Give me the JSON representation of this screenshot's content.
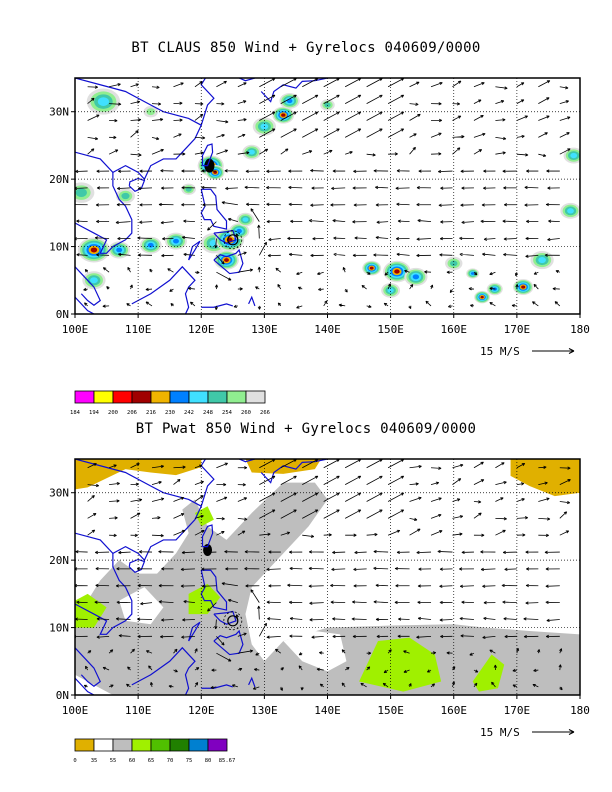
{
  "panels": [
    {
      "title": "BT CLAUS 850 Wind + Gyrelocs 040609/0000",
      "kind": "claus",
      "lat_labels": [
        "30N",
        "20N",
        "10N",
        "0N"
      ],
      "lon_labels": [
        "100E",
        "110E",
        "120E",
        "130E",
        "140E",
        "150E",
        "160E",
        "170E",
        "180"
      ],
      "ref_vector": "15 M/S",
      "colorbar": {
        "labels": [
          "184",
          "194",
          "200",
          "206",
          "216",
          "230",
          "242",
          "248",
          "254",
          "260",
          "266"
        ],
        "colors": [
          "#ff00ff",
          "#ffff00",
          "#ff0000",
          "#a00000",
          "#f0b400",
          "#0080ff",
          "#40e0ff",
          "#40c8a8",
          "#90ee90",
          "#e0e0e0"
        ]
      }
    },
    {
      "title": "BT Pwat 850 Wind + Gyrelocs 040609/0000",
      "kind": "pwat",
      "lat_labels": [
        "30N",
        "20N",
        "10N",
        "0N"
      ],
      "lon_labels": [
        "100E",
        "110E",
        "120E",
        "130E",
        "140E",
        "150E",
        "160E",
        "170E",
        "180"
      ],
      "ref_vector": "15 M/S",
      "colorbar": {
        "labels": [
          "0",
          "35",
          "55",
          "60",
          "65",
          "70",
          "75",
          "80",
          "85.67"
        ],
        "colors": [
          "#e0b000",
          "#ffffff",
          "#bebebe",
          "#a0f000",
          "#50c000",
          "#208000",
          "#0080d0",
          "#8000c0"
        ]
      }
    }
  ],
  "chart_data": {
    "type": "map",
    "region": {
      "lon_range": [
        100,
        180
      ],
      "lat_range": [
        0,
        35
      ]
    },
    "vector_reference_speed_mps": 15,
    "gyre_location": {
      "lon": 125,
      "lat": 11
    }
  }
}
